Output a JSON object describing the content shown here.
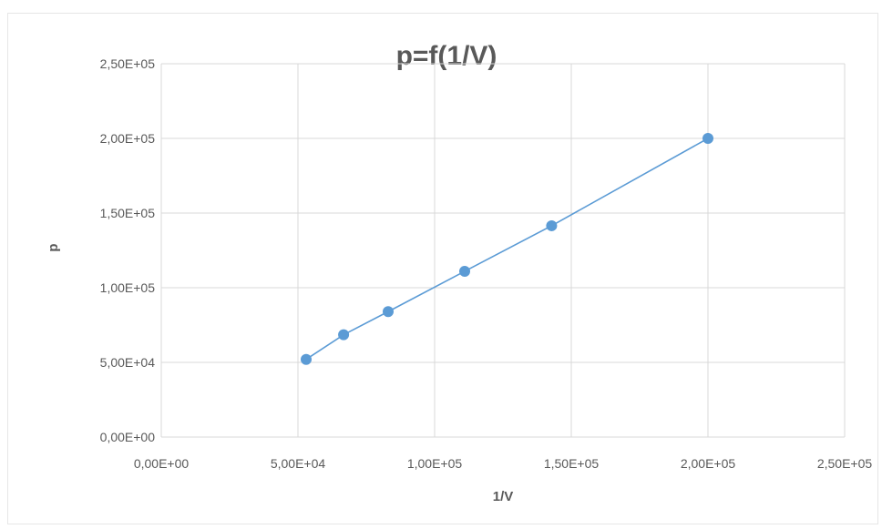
{
  "chart_data": {
    "type": "scatter",
    "title": "p=f(1/V)",
    "xlabel": "1/V",
    "ylabel": "p",
    "xlim": [
      0,
      250000
    ],
    "ylim": [
      0,
      250000
    ],
    "x_ticks": [
      "0,00E+00",
      "5,00E+04",
      "1,00E+05",
      "1,50E+05",
      "2,00E+05",
      "2,50E+05"
    ],
    "y_ticks": [
      "0,00E+00",
      "5,00E+04",
      "1,00E+05",
      "1,50E+05",
      "2,00E+05",
      "2,50E+05"
    ],
    "grid": true,
    "legend": "none",
    "series": [
      {
        "x": [
          53000,
          66700,
          83000,
          111000,
          142800,
          200000
        ],
        "y": [
          52000,
          68500,
          84000,
          111000,
          141500,
          200000
        ],
        "connected": true,
        "color": "#5b9bd5"
      }
    ]
  }
}
